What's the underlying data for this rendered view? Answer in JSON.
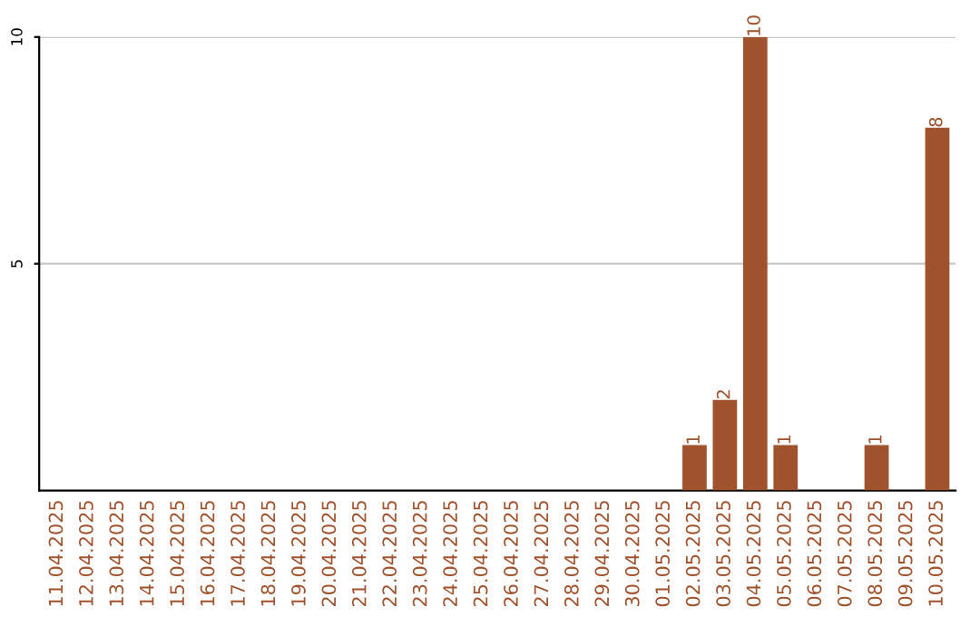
{
  "chart_data": {
    "type": "bar",
    "categories": [
      "11.04.2025",
      "12.04.2025",
      "13.04.2025",
      "14.04.2025",
      "15.04.2025",
      "16.04.2025",
      "17.04.2025",
      "18.04.2025",
      "19.04.2025",
      "20.04.2025",
      "21.04.2025",
      "22.04.2025",
      "23.04.2025",
      "24.04.2025",
      "25.04.2025",
      "26.04.2025",
      "27.04.2025",
      "28.04.2025",
      "29.04.2025",
      "30.04.2025",
      "01.05.2025",
      "02.05.2025",
      "03.05.2025",
      "04.05.2025",
      "05.05.2025",
      "06.05.2025",
      "07.05.2025",
      "08.05.2025",
      "09.05.2025",
      "10.05.2025"
    ],
    "values": [
      0,
      0,
      0,
      0,
      0,
      0,
      0,
      0,
      0,
      0,
      0,
      0,
      0,
      0,
      0,
      0,
      0,
      0,
      0,
      0,
      0,
      1,
      2,
      10,
      1,
      0,
      0,
      1,
      0,
      8
    ],
    "value_labels": [
      null,
      null,
      null,
      null,
      null,
      null,
      null,
      null,
      null,
      null,
      null,
      null,
      null,
      null,
      null,
      null,
      null,
      null,
      null,
      null,
      null,
      "1",
      "2",
      "10",
      "1",
      null,
      null,
      "1",
      null,
      "8"
    ],
    "color": "#a0522d",
    "ylim": [
      0,
      10
    ],
    "yticks": [
      5,
      10
    ],
    "grid": "y"
  }
}
